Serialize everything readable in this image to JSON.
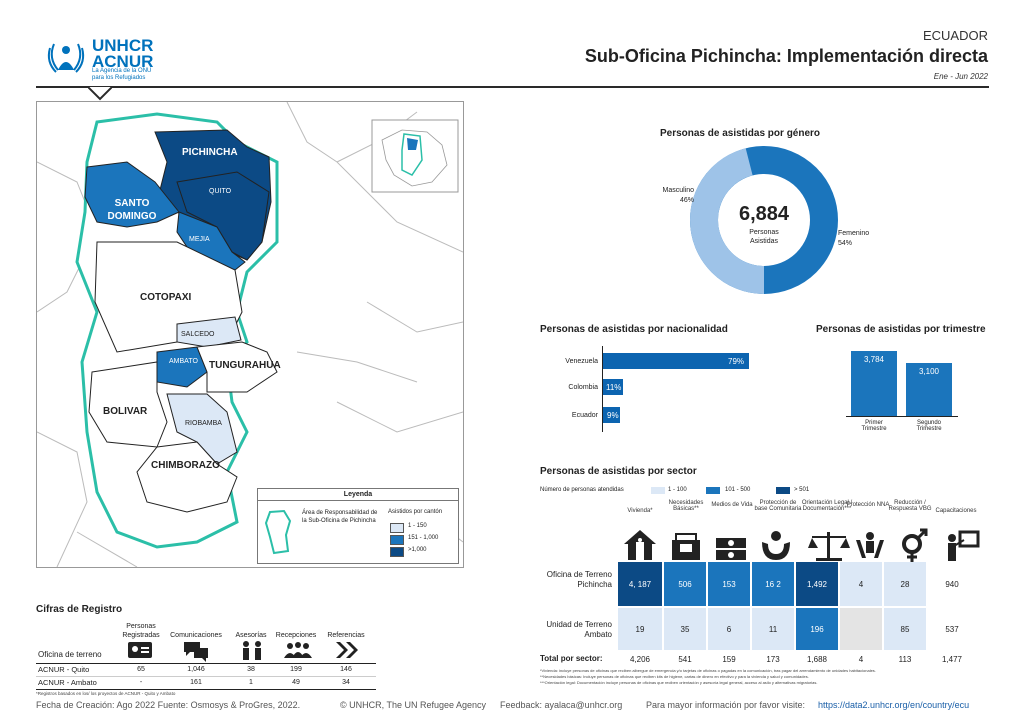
{
  "logo": {
    "name": "UNHCR",
    "name2": "ACNUR",
    "tagline": "La Agencia de la ONU para los Refugiados"
  },
  "header": {
    "country": "ECUADOR",
    "title": "Sub-Oficina Pichincha: Implementación directa",
    "date": "Ene - Jun 2022"
  },
  "map": {
    "provinces": [
      "PICHINCHA",
      "SANTO DOMINGO",
      "COTOPAXI",
      "TUNGURAHUA",
      "BOLIVAR",
      "CHIMBORAZO"
    ],
    "cantons": [
      "QUITO",
      "MEJIA",
      "SALCEDO",
      "AMBATO",
      "RIOBAMBA"
    ],
    "legend": {
      "title": "Leyenda",
      "area_label": "Área de Responsabilidad de la Sub-Oficina de Pichincha",
      "canton_title": "Asistidos por cantón",
      "ranges": [
        "1 - 150",
        "151 - 1,000",
        ">1,000"
      ]
    }
  },
  "gender": {
    "title": "Personas de asistidas por género",
    "total": "6,884",
    "total_label1": "Personas",
    "total_label2": "Asistidas",
    "male_label": "Masculino",
    "male_pct": "46%",
    "female_label": "Femenino",
    "female_pct": "54%"
  },
  "nationality": {
    "title": "Personas de asistidas por nacionalidad",
    "items": [
      {
        "label": "Venezuela",
        "pct": "79%"
      },
      {
        "label": "Colombia",
        "pct": "11%"
      },
      {
        "label": "Ecuador",
        "pct": "9%"
      }
    ]
  },
  "quarter": {
    "title": "Personas de asistidas por trimestre",
    "items": [
      {
        "label1": "Primer",
        "label2": "Trimestre",
        "value": "3,784"
      },
      {
        "label1": "Segundo",
        "label2": "Trimestre",
        "value": "3,100"
      }
    ]
  },
  "sector": {
    "title": "Personas de asistidas por sector",
    "legend_title": "Número de personas atendidas",
    "legend_ranges": [
      "1 - 100",
      "101 - 500",
      "> 501"
    ],
    "headers": [
      "Vivienda*",
      "Necesidades Básicas**",
      "Medios de Vida",
      "Protección de base Comunitaria",
      "Orientación Legal / Documentación***",
      "Protección NNA",
      "Reducción / Respuesta VBG",
      "Capacitaciones"
    ],
    "rows": [
      {
        "label": "Oficina de Terreno Pichincha",
        "values": [
          "4, 187",
          "506",
          "153",
          "16 2",
          "1,492",
          "4",
          "28",
          "940"
        ]
      },
      {
        "label": "Unidad de Terreno Ambato",
        "values": [
          "19",
          "35",
          "6",
          "11",
          "196",
          "",
          "85",
          "537"
        ]
      }
    ],
    "total_label": "Total por sector:",
    "totals": [
      "4,206",
      "541",
      "159",
      "173",
      "1,688",
      "4",
      "113",
      "1,477"
    ],
    "notes": [
      "*Vivienda: incluye personas de oficinas que reciben albergue de emergencia y/o tarjetas de oficinas o pagadas en la comunicación, tras pagar del arrendamiento de unidades habitacionales.",
      "**Necesidades básicas: Incluye personas de oficinas que reciben kits de higiene, cartas de dinero en efectivo y para la vivienda y salud y comunidades.",
      "***Orientación legal: Documentación incluye personas de oficinas que reciben orientación y asesoría legal general, acceso al asilo y alternativas migratorias."
    ]
  },
  "registry": {
    "title": "Cifras de Registro",
    "office_header": "Oficina de terreno",
    "columns": [
      "Personas Registradas",
      "Comunicaciones",
      "Asesorías",
      "Recepciones",
      "Referencias"
    ],
    "rows": [
      {
        "office": "ACNUR - Quito",
        "values": [
          "65",
          "1,046",
          "38",
          "199",
          "146"
        ]
      },
      {
        "office": "ACNUR - Ambato",
        "values": [
          "-",
          "161",
          "1",
          "49",
          "34"
        ]
      }
    ],
    "note": "*Registros basados en los/ los proyectos de ACNUR - Quito y Ambato"
  },
  "footer": {
    "created": "Fecha de Creación: Ago 2022  Fuente: Osmosys & ProGres, 2022.",
    "copyright": "© UNHCR, The UN Refugee Agency",
    "feedback": "Feedback: ayalaca@unhcr.org",
    "info": "Para mayor información por favor visite:",
    "link": "https://data2.unhcr.org/en/country/ecu"
  }
}
